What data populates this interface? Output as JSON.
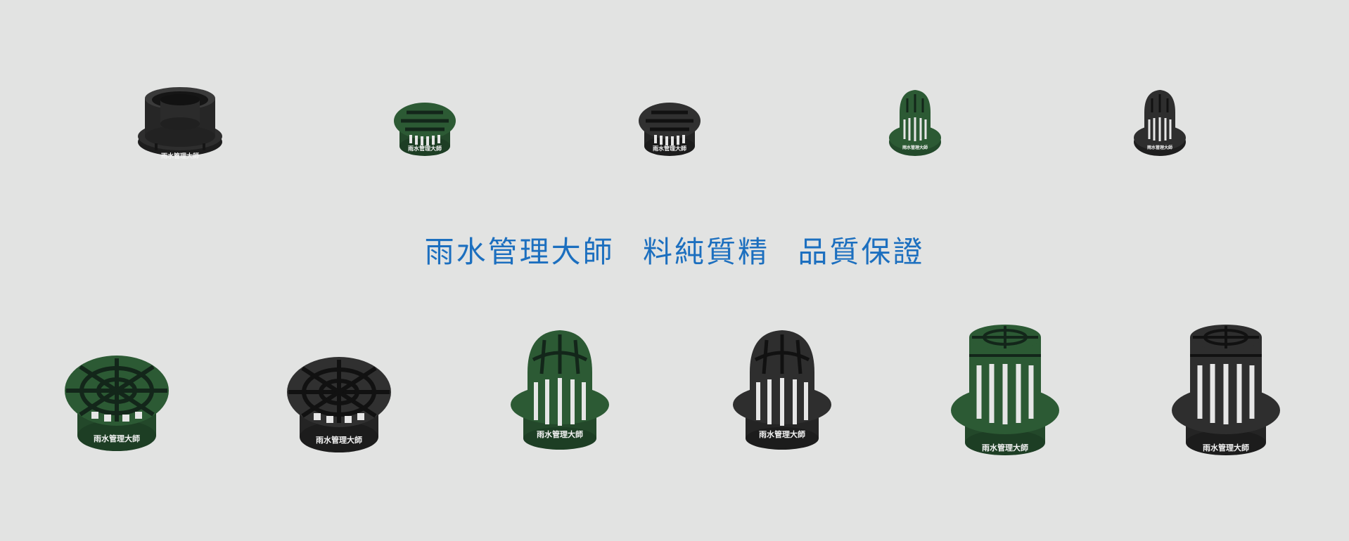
{
  "colors": {
    "background": "#e2e3e2",
    "green_plastic": "#2c5a34",
    "black_plastic": "#2a2a2a",
    "slogan": "#1c6fbf",
    "stamp": "#f2f2f2"
  },
  "brand_stamp": "雨水管理大師",
  "slogan": {
    "parts": [
      "雨水管理大師",
      "料純質精",
      "品質保證"
    ]
  },
  "products_top_row": [
    {
      "name": "flanged-adapter",
      "color": "black"
    },
    {
      "name": "flat-grate",
      "color": "green"
    },
    {
      "name": "flat-grate",
      "color": "black"
    },
    {
      "name": "dome-strainer",
      "color": "green"
    },
    {
      "name": "dome-strainer",
      "color": "black"
    }
  ],
  "products_bottom_row": [
    {
      "name": "flat-grate",
      "color": "green"
    },
    {
      "name": "flat-grate",
      "color": "black"
    },
    {
      "name": "dome-strainer",
      "color": "green"
    },
    {
      "name": "dome-strainer",
      "color": "black"
    },
    {
      "name": "cylinder-strainer",
      "color": "green"
    },
    {
      "name": "cylinder-strainer",
      "color": "black"
    }
  ]
}
